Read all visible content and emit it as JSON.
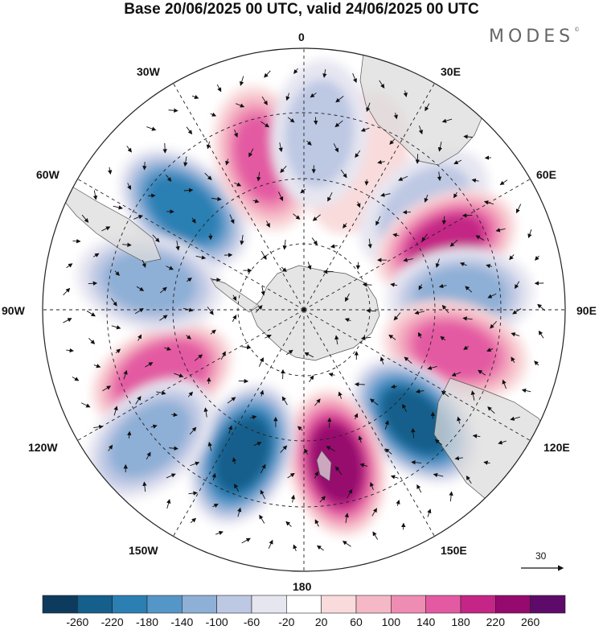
{
  "title": "Base 20/06/2025 00 UTC, valid 24/06/2025 00 UTC",
  "brand": "MODES",
  "brand_mark": "©",
  "longitude_labels": {
    "lon_0": "0",
    "lon_30e": "30E",
    "lon_60e": "60E",
    "lon_90e": "90E",
    "lon_120e": "120E",
    "lon_150e": "150E",
    "lon_180": "180",
    "lon_150w": "150W",
    "lon_120w": "120W",
    "lon_90w": "90W",
    "lon_60w": "60W",
    "lon_30w": "30W"
  },
  "reference_vector": {
    "label": "30"
  },
  "colorbar": {
    "ticks": [
      "-260",
      "-220",
      "-180",
      "-140",
      "-100",
      "-60",
      "-20",
      "20",
      "60",
      "100",
      "140",
      "180",
      "220",
      "260"
    ],
    "colors": [
      "#0d3b5e",
      "#155f8c",
      "#2b7fb3",
      "#5596c8",
      "#8eafd6",
      "#bdc8e3",
      "#e6e6f1",
      "#ffffff",
      "#f9dbdc",
      "#f5b8c6",
      "#ef8cb3",
      "#e35aa2",
      "#c42586",
      "#96096e",
      "#5e0a6a"
    ]
  },
  "map": {
    "projection": "south polar stereographic",
    "anomaly_centers": [
      {
        "lon_deg": -50,
        "value": -190
      },
      {
        "lon_deg": -15,
        "value": 150
      },
      {
        "lon_deg": 20,
        "value": 60
      },
      {
        "lon_deg": 50,
        "value": -60
      },
      {
        "lon_deg": 65,
        "value": 190
      },
      {
        "lon_deg": 85,
        "value": -130
      },
      {
        "lon_deg": 105,
        "value": 150
      },
      {
        "lon_deg": 135,
        "value": -240
      },
      {
        "lon_deg": 168,
        "value": 230
      },
      {
        "lon_deg": -157,
        "value": -240
      },
      {
        "lon_deg": -115,
        "value": 180
      },
      {
        "lon_deg": -80,
        "value": -110
      },
      {
        "lon_deg": -130,
        "value": -100
      },
      {
        "lon_deg": 5,
        "value": -60
      }
    ]
  }
}
